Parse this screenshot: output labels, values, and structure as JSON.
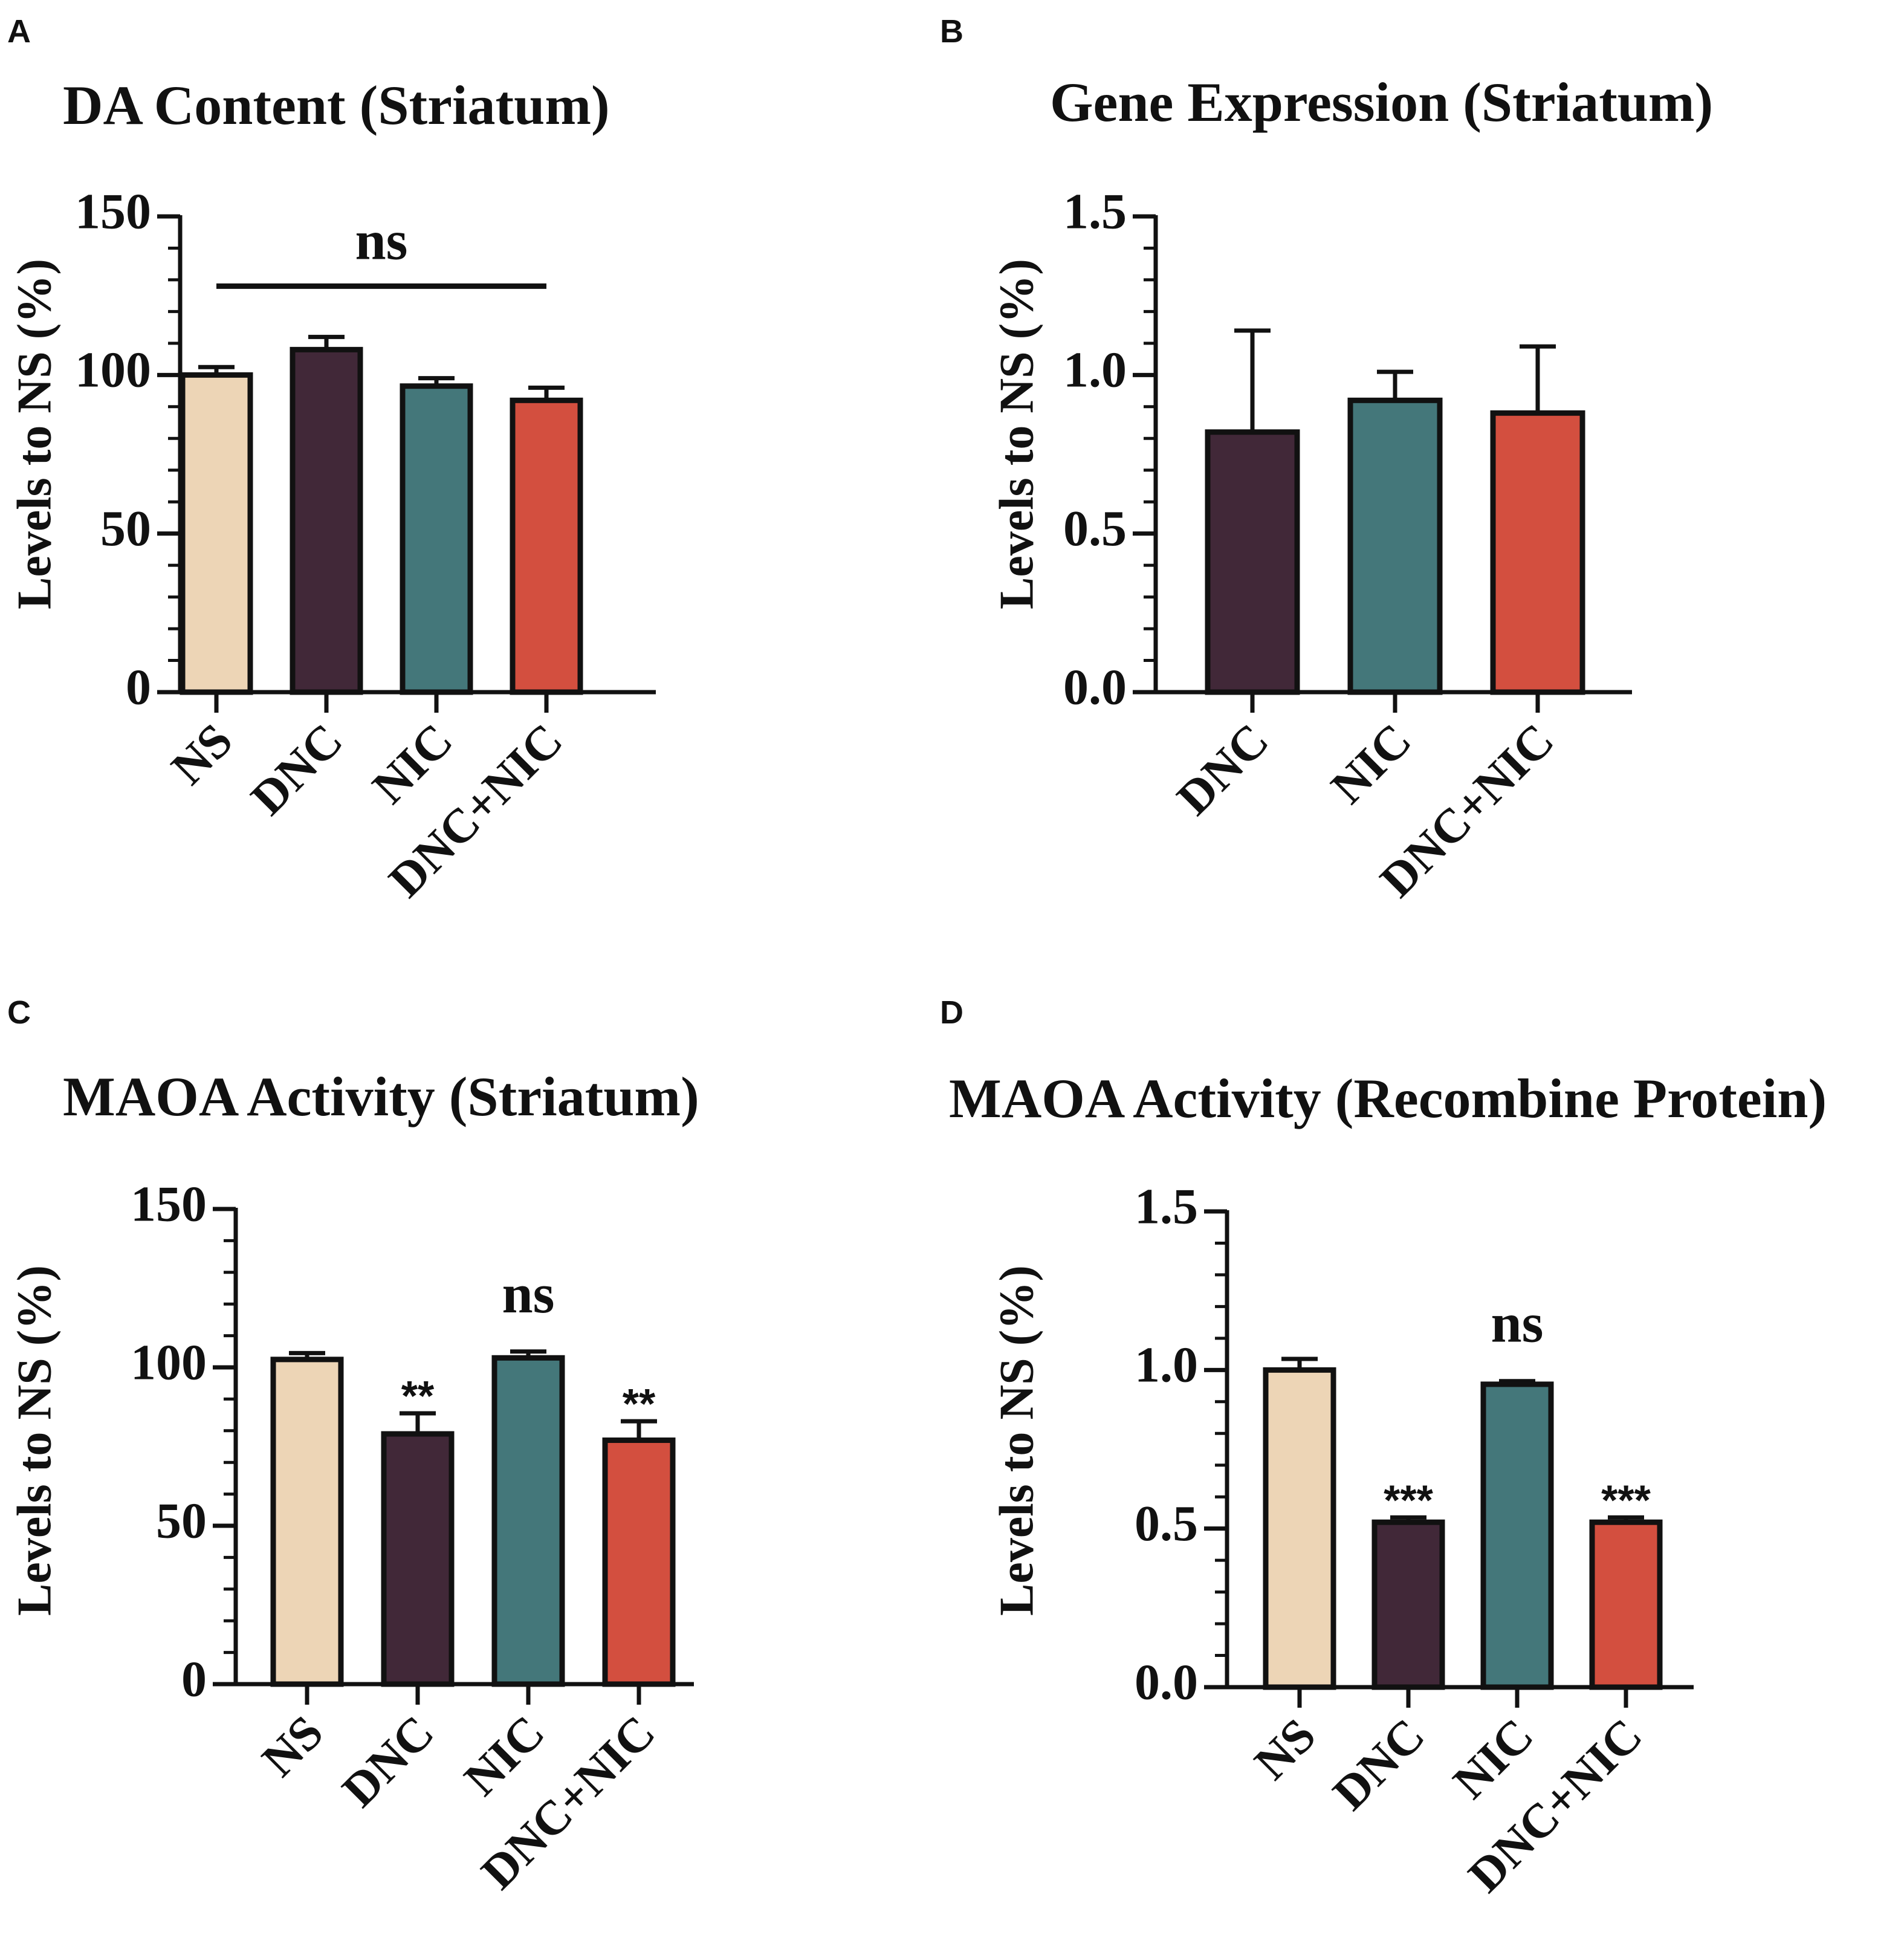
{
  "colors": {
    "NS": "#EDD5B6",
    "DNC": "#412838",
    "NIC": "#44777A",
    "DNC+NIC": "#D34F3F",
    "stroke": "#111111"
  },
  "chart_data": [
    {
      "panel": "A",
      "type": "bar",
      "title": "DA Content (Striatum)",
      "ylabel": "Levels to NS (%)",
      "xlabel": "",
      "ylim": [
        0,
        150
      ],
      "yticks": [
        0,
        50,
        100,
        150
      ],
      "ytick_labels": [
        "0",
        "50",
        "100",
        "150"
      ],
      "categories": [
        "NS",
        "DNC",
        "NIC",
        "DNC+NIC"
      ],
      "values": [
        100,
        108,
        96.5,
        92
      ],
      "errors": [
        2.5,
        4,
        2.5,
        4
      ],
      "bracket": {
        "label": "ns",
        "y": 128,
        "from": 0,
        "to": 3
      },
      "annotations": []
    },
    {
      "panel": "B",
      "type": "bar",
      "title": "Gene Expression (Striatum)",
      "ylabel": "Levels to NS (%)",
      "xlabel": "",
      "ylim": [
        0,
        1.5
      ],
      "yticks": [
        0,
        0.5,
        1.0,
        1.5
      ],
      "ytick_labels": [
        "0.0",
        "0.5",
        "1.0",
        "1.5"
      ],
      "categories": [
        "DNC",
        "NIC",
        "DNC+NIC"
      ],
      "values": [
        0.82,
        0.92,
        0.88
      ],
      "errors": [
        0.32,
        0.09,
        0.21
      ],
      "annotations": []
    },
    {
      "panel": "C",
      "type": "bar",
      "title": "MAOA Activity (Striatum)",
      "ylabel": "Levels to NS (%)",
      "xlabel": "",
      "ylim": [
        0,
        150
      ],
      "yticks": [
        0,
        50,
        100,
        150
      ],
      "ytick_labels": [
        "0",
        "50",
        "100",
        "150"
      ],
      "categories": [
        "NS",
        "DNC",
        "NIC",
        "DNC+NIC"
      ],
      "values": [
        102.5,
        79,
        103,
        77
      ],
      "errors": [
        2,
        6.5,
        2,
        6
      ],
      "annotations": [
        "",
        "**",
        "ns",
        "**"
      ]
    },
    {
      "panel": "D",
      "type": "bar",
      "title": "MAOA Activity (Recombine Protein)",
      "ylabel": "Levels to NS (%)",
      "xlabel": "",
      "ylim": [
        0,
        1.5
      ],
      "yticks": [
        0,
        0.5,
        1.0,
        1.5
      ],
      "ytick_labels": [
        "0.0",
        "0.5",
        "1.0",
        "1.5"
      ],
      "categories": [
        "NS",
        "DNC",
        "NIC",
        "DNC+NIC"
      ],
      "values": [
        1.0,
        0.52,
        0.955,
        0.52
      ],
      "errors": [
        0.035,
        0.015,
        0.01,
        0.015
      ],
      "annotations": [
        "",
        "***",
        "ns",
        "***"
      ]
    }
  ]
}
